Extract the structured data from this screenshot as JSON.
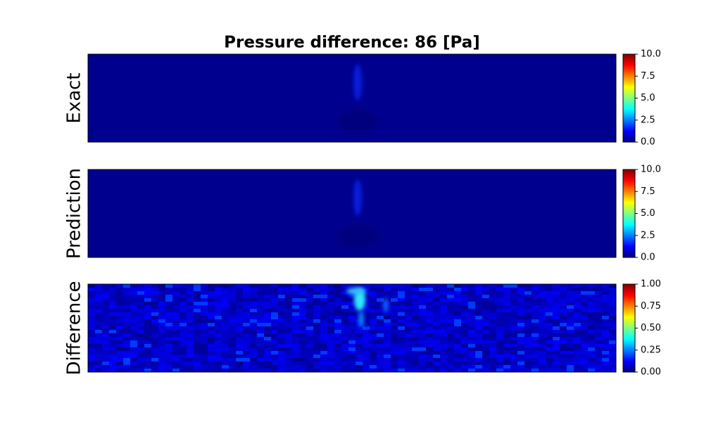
{
  "chart_data": [
    {
      "type": "heatmap",
      "title": "Pressure difference:     86 [Pa]",
      "ylabel": "Exact",
      "colormap": "jet",
      "clim": [
        0,
        10
      ],
      "cticks": [
        {
          "value": 0,
          "label": "0.0"
        },
        {
          "value": 2.5,
          "label": "2.5"
        },
        {
          "value": 5,
          "label": "5.0"
        },
        {
          "value": 7.5,
          "label": "7.5"
        },
        {
          "value": 10,
          "label": "10.0"
        }
      ]
    },
    {
      "type": "heatmap",
      "ylabel": "Prediction",
      "colormap": "jet",
      "clim": [
        0,
        10
      ],
      "cticks": [
        {
          "value": 0,
          "label": "0.0"
        },
        {
          "value": 2.5,
          "label": "2.5"
        },
        {
          "value": 5,
          "label": "5.0"
        },
        {
          "value": 7.5,
          "label": "7.5"
        },
        {
          "value": 10,
          "label": "10.0"
        }
      ]
    },
    {
      "type": "heatmap",
      "ylabel": "Difference",
      "colormap": "jet",
      "clim": [
        0,
        1
      ],
      "cticks": [
        {
          "value": 0,
          "label": "0.00"
        },
        {
          "value": 0.25,
          "label": "0.25"
        },
        {
          "value": 0.5,
          "label": "0.50"
        },
        {
          "value": 0.75,
          "label": "0.75"
        },
        {
          "value": 1,
          "label": "1.00"
        }
      ]
    }
  ]
}
